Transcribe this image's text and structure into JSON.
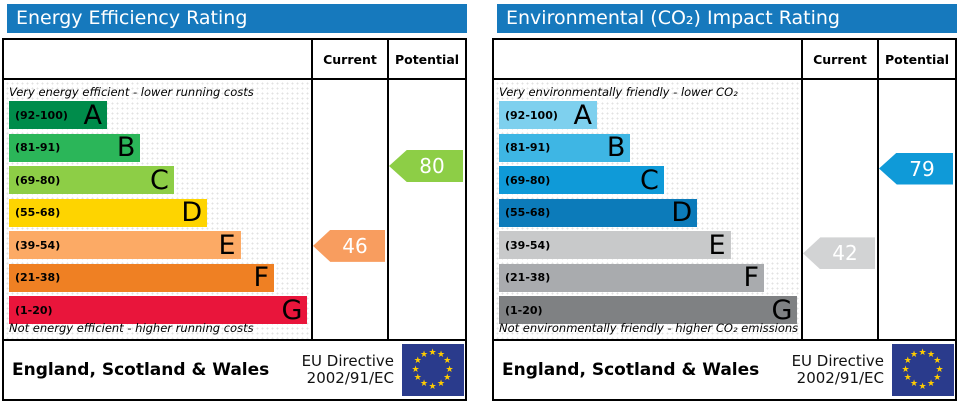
{
  "panels": [
    {
      "title": "Energy Efficiency Rating",
      "header_color": "#1679bd",
      "columns": {
        "current": "Current",
        "potential": "Potential"
      },
      "top_note": "Very energy efficient - lower running costs",
      "bottom_note": "Not energy efficient - higher running costs",
      "bands": [
        {
          "letter": "A",
          "range_label": "(92-100)",
          "min": 92,
          "max": 100,
          "color": "#008c4b"
        },
        {
          "letter": "B",
          "range_label": "(81-91)",
          "min": 81,
          "max": 91,
          "color": "#2bb659"
        },
        {
          "letter": "C",
          "range_label": "(69-80)",
          "min": 69,
          "max": 80,
          "color": "#8dce46"
        },
        {
          "letter": "D",
          "range_label": "(55-68)",
          "min": 55,
          "max": 68,
          "color": "#fed400"
        },
        {
          "letter": "E",
          "range_label": "(39-54)",
          "min": 39,
          "max": 54,
          "color": "#fcaa65"
        },
        {
          "letter": "F",
          "range_label": "(21-38)",
          "min": 21,
          "max": 38,
          "color": "#ef8023"
        },
        {
          "letter": "G",
          "range_label": "(1-20)",
          "min": 1,
          "max": 20,
          "color": "#e9153b"
        }
      ],
      "current": {
        "value": 46,
        "color": "#f89d5f"
      },
      "potential": {
        "value": 80,
        "color": "#8dce46"
      },
      "footer": {
        "region": "England, Scotland & Wales",
        "directive": [
          "EU Directive",
          "2002/91/EC"
        ],
        "flag_colors": {
          "background": "#2a3b8c",
          "stars": "#ffcc00"
        }
      }
    },
    {
      "title": "Environmental (CO₂) Impact Rating",
      "header_color": "#1679bd",
      "columns": {
        "current": "Current",
        "potential": "Potential"
      },
      "top_note": "Very environmentally friendly - lower CO₂ emissions",
      "bottom_note": "Not environmentally friendly - higher CO₂ emissions",
      "bands": [
        {
          "letter": "A",
          "range_label": "(92-100)",
          "min": 92,
          "max": 100,
          "color": "#7ed0ee"
        },
        {
          "letter": "B",
          "range_label": "(81-91)",
          "min": 81,
          "max": 91,
          "color": "#3eb6e4"
        },
        {
          "letter": "C",
          "range_label": "(69-80)",
          "min": 69,
          "max": 80,
          "color": "#0f9ad8"
        },
        {
          "letter": "D",
          "range_label": "(55-68)",
          "min": 55,
          "max": 68,
          "color": "#0c7bba"
        },
        {
          "letter": "E",
          "range_label": "(39-54)",
          "min": 39,
          "max": 54,
          "color": "#c8c9ca"
        },
        {
          "letter": "F",
          "range_label": "(21-38)",
          "min": 21,
          "max": 38,
          "color": "#a9abae"
        },
        {
          "letter": "G",
          "range_label": "(1-20)",
          "min": 1,
          "max": 20,
          "color": "#7f8183"
        }
      ],
      "current": {
        "value": 42,
        "color": "#d2d3d4"
      },
      "potential": {
        "value": 79,
        "color": "#0f9ad8"
      },
      "footer": {
        "region": "England, Scotland & Wales",
        "directive": [
          "EU Directive",
          "2002/91/EC"
        ],
        "flag_colors": {
          "background": "#2a3b8c",
          "stars": "#ffcc00"
        }
      }
    }
  ],
  "chart_data": [
    {
      "type": "bar",
      "title": "Energy Efficiency Rating",
      "categories": [
        "A (92-100)",
        "B (81-91)",
        "C (69-80)",
        "D (55-68)",
        "E (39-54)",
        "F (21-38)",
        "G (1-20)"
      ],
      "series": [
        {
          "name": "Current",
          "values": [
            46
          ],
          "band": "E"
        },
        {
          "name": "Potential",
          "values": [
            80
          ],
          "band": "C"
        }
      ],
      "xlabel": "",
      "ylabel": "",
      "axis_range": [
        1,
        100
      ],
      "annotations": [
        "Very energy efficient - lower running costs",
        "Not energy efficient - higher running costs"
      ]
    },
    {
      "type": "bar",
      "title": "Environmental (CO₂) Impact Rating",
      "categories": [
        "A (92-100)",
        "B (81-91)",
        "C (69-80)",
        "D (55-68)",
        "E (39-54)",
        "F (21-38)",
        "G (1-20)"
      ],
      "series": [
        {
          "name": "Current",
          "values": [
            42
          ],
          "band": "E"
        },
        {
          "name": "Potential",
          "values": [
            79
          ],
          "band": "C"
        }
      ],
      "xlabel": "",
      "ylabel": "",
      "axis_range": [
        1,
        100
      ],
      "annotations": [
        "Very environmentally friendly - lower CO₂ emissions",
        "Not environmentally friendly - higher CO₂ emissions"
      ]
    }
  ]
}
